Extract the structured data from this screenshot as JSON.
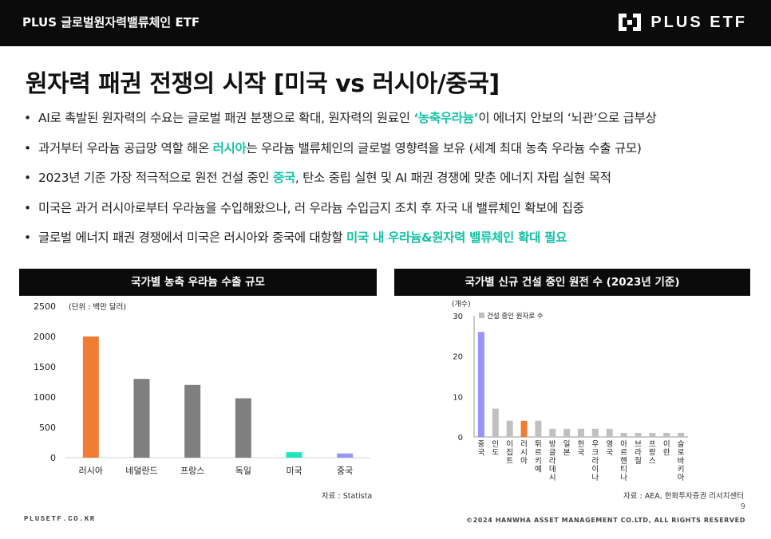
{
  "header": {
    "title": "PLUS 글로벌원자력밸류체인 ETF",
    "logo_text": "PLUS ETF"
  },
  "page_title": "원자력 패권 전쟁의 시작 [미국 vs 러시아/중국]",
  "bullets": [
    {
      "before": "AI로 촉발된 원자력의 수요는 글로벌 패권 분쟁으로 확대, 원자력의 원료인 ",
      "highlight": "‘농축우라늄’",
      "after": "이 에너지 안보의 ‘뇌관’으로 급부상"
    },
    {
      "before": "과거부터 우라늄 공급망 역할 해온 ",
      "highlight": "러시아",
      "after": "는 우라늄 밸류체인의 글로벌 영향력을 보유 (세계 최대 농축 우라늄 수출 규모)"
    },
    {
      "before": "2023년 기준 가장 적극적으로 원전 건설 중인 ",
      "highlight": "중국",
      "after": ", 탄소 중립 실현 및 AI 패권 경쟁에 맞춘 에너지 자립 실현 목적"
    },
    {
      "before": "미국은 과거 러시아로부터 우라늄을 수입해왔으나, 러 우라늄 수입금지 조치 후 자국 내 밸류체인 확보에 집중",
      "highlight": "",
      "after": ""
    },
    {
      "before": "글로벌 에너지 패권 경쟁에서 미국은 러시아와 중국에 대항할 ",
      "highlight": "미국 내 우라늄&원자력 밸류체인 확대 필요",
      "after": ""
    }
  ],
  "colors": {
    "highlight": "#16c2a4",
    "orange": "#ef7d33",
    "gray": "#7f7f7f",
    "light_gray": "#c0c0c0",
    "teal": "#1ce6c0",
    "purple": "#9a94f7"
  },
  "left_panel": {
    "title": "국가별 농축 우라늄 수출 규모",
    "source": "자료 : Statista"
  },
  "right_panel": {
    "title": "국가별 신규 건설 중인 원전 수 (2023년 기준)",
    "source": "자료 : AEA, 한화투자증권 리서치센터"
  },
  "chart_data": [
    {
      "type": "bar",
      "title": "국가별 농축 우라늄 수출 규모",
      "unit_label": "(단위 : 백만 달러)",
      "categories": [
        "러시아",
        "네덜란드",
        "프랑스",
        "독일",
        "미국",
        "중국"
      ],
      "values": [
        2000,
        1300,
        1200,
        980,
        90,
        70
      ],
      "bar_colors": [
        "#ef7d33",
        "#7f7f7f",
        "#7f7f7f",
        "#7f7f7f",
        "#1ce6c0",
        "#9a94f7"
      ],
      "yticks": [
        0,
        500,
        1000,
        1500,
        2000,
        2500
      ],
      "ylim": [
        0,
        2500
      ]
    },
    {
      "type": "bar",
      "title": "국가별 신규 건설 중인 원전 수 (2023년 기준)",
      "unit_label": "(개수)",
      "legend": "건설 중인 원자로 수",
      "legend_position": "top-left",
      "categories": [
        "중국",
        "인도",
        "이집트",
        "러시아",
        "튀르키예",
        "방글라데시",
        "일본",
        "한국",
        "우크라이나",
        "영국",
        "아르헨티나",
        "브라질",
        "프랑스",
        "이란",
        "슬로바키아"
      ],
      "values": [
        26,
        7,
        4,
        4,
        4,
        2,
        2,
        2,
        2,
        2,
        1,
        1,
        1,
        1,
        1
      ],
      "bar_colors": [
        "#9a94f7",
        "#c0c0c0",
        "#c0c0c0",
        "#ef7d33",
        "#c0c0c0",
        "#c0c0c0",
        "#c0c0c0",
        "#c0c0c0",
        "#c0c0c0",
        "#c0c0c0",
        "#c0c0c0",
        "#c0c0c0",
        "#c0c0c0",
        "#c0c0c0",
        "#c0c0c0"
      ],
      "yticks": [
        0,
        10,
        20,
        30
      ],
      "ylim": [
        0,
        30
      ]
    }
  ],
  "footer": {
    "site": "PLUSETF.CO.KR",
    "copyright": "©2024 HANWHA ASSET MANAGEMENT CO.LTD, ALL RIGHTS RESERVED",
    "page_number": "9"
  }
}
